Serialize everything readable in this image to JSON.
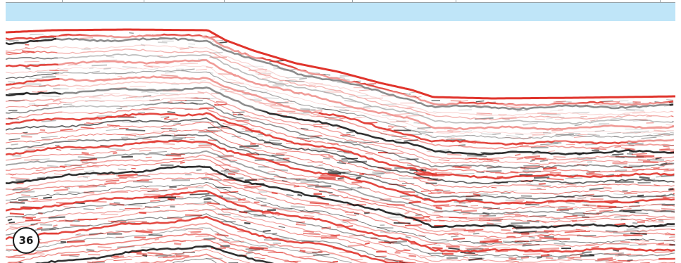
{
  "figure": {
    "panel_label": "36"
  },
  "colors": {
    "water": "#bfe5f8",
    "background": "#ffffff",
    "reflector_red": "#e0342c",
    "reflector_dark": "#1a1a1a",
    "noise_grey": "#8a8a8a"
  }
}
